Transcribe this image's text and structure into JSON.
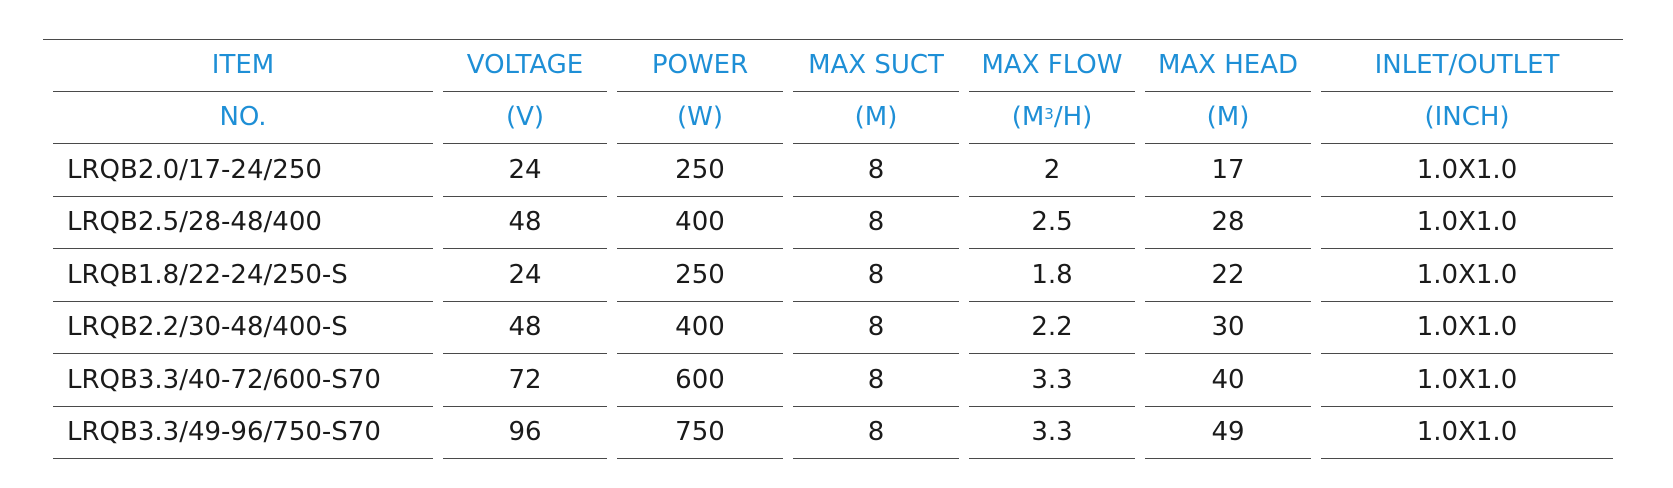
{
  "table": {
    "header_row1": [
      "ITEM",
      "VOLTAGE",
      "POWER",
      "MAX SUCT",
      "MAX FLOW",
      "MAX HEAD",
      "INLET/OUTLET"
    ],
    "header_row2": {
      "item": "NO.",
      "voltage": "(V)",
      "power": "(W)",
      "suct": "(M)",
      "flow_pre": "(M",
      "flow_sup": "3",
      "flow_post": "/H)",
      "head": "(M)",
      "inlet": "(INCH)"
    },
    "rows": [
      [
        "LRQB2.0/17-24/250",
        "24",
        "250",
        "8",
        "2",
        "17",
        "1.0X1.0"
      ],
      [
        "LRQB2.5/28-48/400",
        "48",
        "400",
        "8",
        "2.5",
        "28",
        "1.0X1.0"
      ],
      [
        "LRQB1.8/22-24/250-S",
        "24",
        "250",
        "8",
        "1.8",
        "22",
        "1.0X1.0"
      ],
      [
        "LRQB2.2/30-48/400-S",
        "48",
        "400",
        "8",
        "2.2",
        "30",
        "1.0X1.0"
      ],
      [
        "LRQB3.3/40-72/600-S70",
        "72",
        "600",
        "8",
        "3.3",
        "40",
        "1.0X1.0"
      ],
      [
        "LRQB3.3/49-96/750-S70",
        "96",
        "750",
        "8",
        "3.3",
        "49",
        "1.0X1.0"
      ]
    ],
    "header_color": "#1e8fd6",
    "text_color": "#1a1a1a"
  }
}
